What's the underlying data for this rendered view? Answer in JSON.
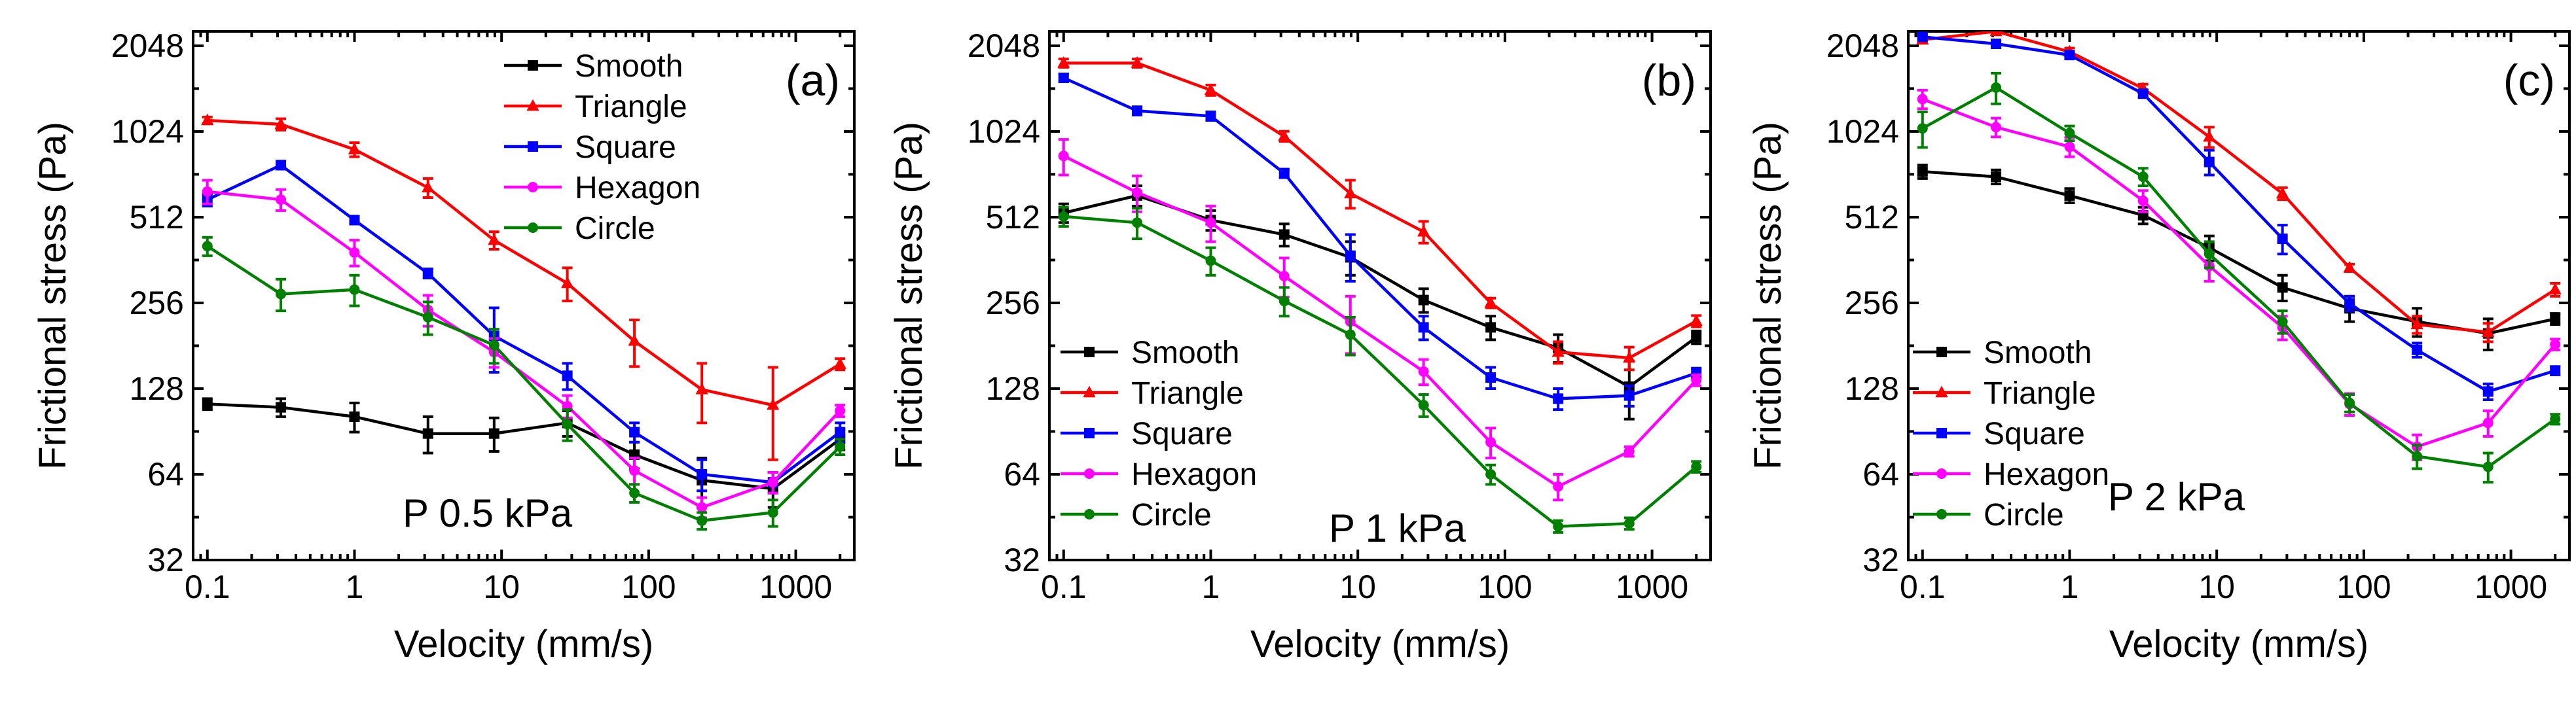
{
  "chart_data": [
    {
      "type": "line",
      "panel_label": "(a)",
      "annotation": "P 0.5 kPa",
      "xlabel": "Velocity (mm/s)",
      "ylabel": "Frictional stress (Pa)",
      "x_scale": "log",
      "y_scale": "log2",
      "xlim": [
        0.08,
        2500
      ],
      "ylim": [
        32,
        2300
      ],
      "x_ticks": [
        0.1,
        1,
        10,
        100,
        1000
      ],
      "x_tick_labels": [
        "0.1",
        "1",
        "10",
        "100",
        "1000"
      ],
      "y_ticks": [
        32,
        64,
        128,
        256,
        512,
        1024,
        2048
      ],
      "y_tick_labels": [
        "32",
        "64",
        "128",
        "256",
        "512",
        "1024",
        "2048"
      ],
      "legend_position": "top-right",
      "x": [
        0.1,
        0.316,
        1,
        3.16,
        8.9,
        28,
        80,
        230,
        700,
        2000
      ],
      "series": [
        {
          "name": "Smooth",
          "color": "#000000",
          "marker": "square",
          "values": [
            113,
            110,
            102,
            89,
            89,
            97,
            75,
            61,
            57,
            85
          ],
          "errors": [
            5,
            8,
            12,
            13,
            12,
            10,
            8,
            12,
            8,
            7
          ]
        },
        {
          "name": "Triangle",
          "color": "#ff0000",
          "marker": "triangle",
          "values": [
            1120,
            1085,
            885,
            650,
            425,
            300,
            188,
            127,
            112,
            156
          ],
          "errors": [
            30,
            50,
            50,
            50,
            30,
            40,
            35,
            30,
            40,
            7
          ]
        },
        {
          "name": "Square",
          "color": "#0000ff",
          "marker": "square",
          "values": [
            590,
            780,
            500,
            325,
            196,
            142,
            90,
            64,
            60,
            90
          ],
          "errors": [
            30,
            25,
            15,
            12,
            50,
            15,
            7,
            8,
            5,
            7
          ]
        },
        {
          "name": "Hexagon",
          "color": "#ff00ff",
          "marker": "circle",
          "values": [
            630,
            590,
            385,
            242,
            172,
            111,
            66,
            49,
            60,
            107
          ],
          "errors": [
            60,
            50,
            40,
            30,
            20,
            10,
            7,
            4,
            5,
            5
          ]
        },
        {
          "name": "Circle",
          "color": "#008000",
          "marker": "circle",
          "values": [
            405,
            275,
            285,
            228,
            182,
            96,
            55,
            44,
            47,
            80
          ],
          "errors": [
            30,
            35,
            35,
            30,
            25,
            12,
            4,
            3,
            5,
            5
          ]
        }
      ]
    },
    {
      "type": "line",
      "panel_label": "(b)",
      "annotation": "P 1 kPa",
      "xlabel": "Velocity (mm/s)",
      "ylabel": "Frictional stress (Pa)",
      "x_scale": "log",
      "y_scale": "log2",
      "xlim": [
        0.08,
        2500
      ],
      "ylim": [
        32,
        2300
      ],
      "x_ticks": [
        0.1,
        1,
        10,
        100,
        1000
      ],
      "x_tick_labels": [
        "0.1",
        "1",
        "10",
        "100",
        "1000"
      ],
      "y_ticks": [
        32,
        64,
        128,
        256,
        512,
        1024,
        2048
      ],
      "y_tick_labels": [
        "32",
        "64",
        "128",
        "256",
        "512",
        "1024",
        "2048"
      ],
      "legend_position": "bottom-left",
      "x": [
        0.1,
        0.316,
        1,
        3.16,
        8.9,
        28,
        80,
        230,
        700,
        2000
      ],
      "series": [
        {
          "name": "Smooth",
          "color": "#000000",
          "marker": "square",
          "values": [
            530,
            610,
            500,
            445,
            370,
            262,
            210,
            178,
            130,
            194
          ],
          "errors": [
            40,
            50,
            40,
            40,
            50,
            25,
            20,
            20,
            30,
            10
          ]
        },
        {
          "name": "Triangle",
          "color": "#ff0000",
          "marker": "triangle",
          "values": [
            1780,
            1780,
            1430,
            985,
            620,
            455,
            256,
            172,
            164,
            221
          ],
          "errors": [
            60,
            60,
            60,
            40,
            70,
            40,
            10,
            15,
            15,
            10
          ]
        },
        {
          "name": "Square",
          "color": "#0000ff",
          "marker": "square",
          "values": [
            1580,
            1210,
            1160,
            730,
            375,
            210,
            140,
            118,
            121,
            145
          ],
          "errors": [
            50,
            40,
            40,
            25,
            70,
            20,
            12,
            10,
            10,
            6
          ]
        },
        {
          "name": "Hexagon",
          "color": "#ff00ff",
          "marker": "circle",
          "values": [
            840,
            625,
            490,
            318,
            220,
            147,
            83,
            58,
            77,
            137
          ],
          "errors": [
            120,
            90,
            70,
            50,
            50,
            15,
            10,
            6,
            3,
            6
          ]
        },
        {
          "name": "Circle",
          "color": "#008000",
          "marker": "circle",
          "values": [
            515,
            490,
            360,
            260,
            198,
            112,
            64,
            42,
            43,
            68
          ],
          "errors": [
            40,
            60,
            40,
            30,
            30,
            10,
            5,
            2,
            2,
            3
          ]
        }
      ]
    },
    {
      "type": "line",
      "panel_label": "(c)",
      "annotation": "P 2 kPa",
      "xlabel": "Velocity (mm/s)",
      "ylabel": "Frictional stress (Pa)",
      "x_scale": "log",
      "y_scale": "log2",
      "xlim": [
        0.08,
        2500
      ],
      "ylim": [
        32,
        2300
      ],
      "x_ticks": [
        0.1,
        1,
        10,
        100,
        1000
      ],
      "x_tick_labels": [
        "0.1",
        "1",
        "10",
        "100",
        "1000"
      ],
      "y_ticks": [
        32,
        64,
        128,
        256,
        512,
        1024,
        2048
      ],
      "y_tick_labels": [
        "32",
        "64",
        "128",
        "256",
        "512",
        "1024",
        "2048"
      ],
      "legend_position": "bottom-left",
      "x": [
        0.1,
        0.316,
        1,
        3.16,
        8.9,
        28,
        80,
        230,
        700,
        2000
      ],
      "series": [
        {
          "name": "Smooth",
          "color": "#000000",
          "marker": "square",
          "values": [
            740,
            710,
            610,
            520,
            400,
            290,
            245,
            220,
            200,
            225
          ],
          "errors": [
            40,
            40,
            35,
            35,
            40,
            30,
            25,
            25,
            25,
            10
          ]
        },
        {
          "name": "Triangle",
          "color": "#ff0000",
          "marker": "triangle",
          "values": [
            2150,
            2300,
            1950,
            1450,
            980,
            620,
            340,
            215,
            202,
            285
          ],
          "errors": [
            60,
            60,
            60,
            50,
            80,
            30,
            10,
            15,
            15,
            15
          ]
        },
        {
          "name": "Square",
          "color": "#0000ff",
          "marker": "square",
          "values": [
            2200,
            2080,
            1900,
            1390,
            800,
            430,
            255,
            175,
            125,
            148
          ],
          "errors": [
            60,
            50,
            50,
            40,
            80,
            50,
            15,
            10,
            8,
            5
          ]
        },
        {
          "name": "Hexagon",
          "color": "#ff00ff",
          "marker": "circle",
          "values": [
            1330,
            1060,
            905,
            585,
            345,
            210,
            113,
            80,
            97,
            183
          ],
          "errors": [
            100,
            80,
            70,
            50,
            40,
            20,
            10,
            8,
            10,
            8
          ]
        },
        {
          "name": "Circle",
          "color": "#008000",
          "marker": "circle",
          "values": [
            1050,
            1460,
            1010,
            710,
            380,
            220,
            114,
            74,
            68,
            100
          ],
          "errors": [
            150,
            180,
            60,
            50,
            40,
            20,
            8,
            7,
            8,
            4
          ]
        }
      ]
    }
  ]
}
